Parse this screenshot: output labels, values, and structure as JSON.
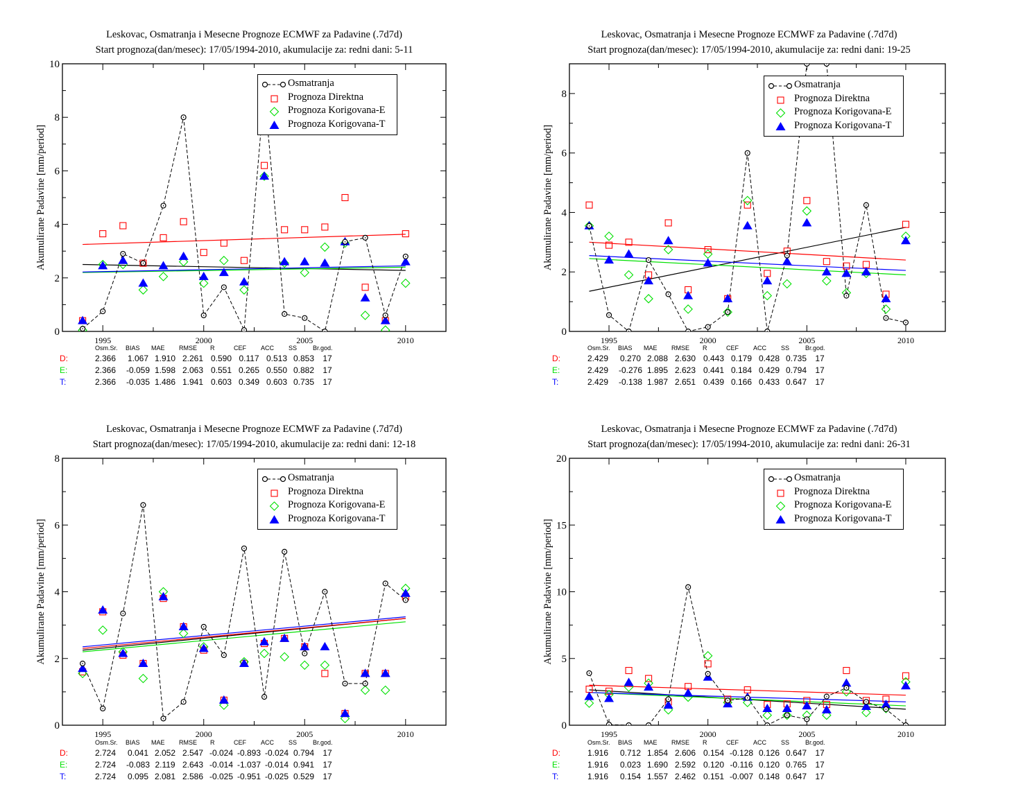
{
  "colors": {
    "obs": "#000000",
    "direct": "#ff0000",
    "corr_e": "#00e000",
    "corr_t": "#0000ff"
  },
  "legend": [
    "Osmatranja",
    "Prognoza Direktna",
    "Prognoza Korigovana-E",
    "Prognoza Korigovana-T"
  ],
  "stats_header": [
    "Osm.Sr.",
    "BIAS",
    "MAE",
    "RMSE",
    "R",
    "CEF",
    "ACC",
    "SS",
    "Br.god."
  ],
  "chart_data": [
    {
      "type": "scatter",
      "title": "Leskovac, Osmatranja i Mesecne Prognoze ECMWF za Padavine (.7d7d)",
      "subtitle": "Start prognoza(dan/mesec): 17/05/1994-2010, akumulacije za: redni dani: 5-11",
      "xlabel": "",
      "ylabel": "Akumulirane Padavine [mm/period]",
      "xlim": [
        1993,
        2012
      ],
      "ylim": [
        0,
        10
      ],
      "yticks": [
        0,
        2,
        4,
        6,
        8,
        10
      ],
      "xticks": [
        1995,
        2000,
        2005,
        2010
      ],
      "legend_position": "top-right",
      "x": [
        1994,
        1995,
        1996,
        1997,
        1998,
        1999,
        2000,
        2001,
        2002,
        2003,
        2004,
        2005,
        2006,
        2007,
        2008,
        2009,
        2010
      ],
      "series": [
        {
          "name": "Osmatranja",
          "values": [
            0.1,
            0.75,
            2.9,
            2.55,
            4.7,
            8.0,
            0.6,
            1.65,
            0.05,
            9.0,
            0.65,
            0.5,
            0.0,
            3.35,
            3.5,
            0.6,
            2.8
          ]
        },
        {
          "name": "Prognoza Direktna",
          "values": [
            0.4,
            3.65,
            3.95,
            2.55,
            3.5,
            4.1,
            2.95,
            3.3,
            2.65,
            6.2,
            3.8,
            3.8,
            3.9,
            5.0,
            1.65,
            0.4,
            3.65
          ]
        },
        {
          "name": "Prognoza Korigovana-E",
          "values": [
            0.05,
            2.5,
            2.5,
            1.55,
            2.05,
            2.6,
            1.8,
            2.65,
            1.55,
            5.8,
            2.55,
            2.2,
            3.15,
            3.3,
            0.6,
            0.05,
            1.8
          ]
        },
        {
          "name": "Prognoza Korigovana-T",
          "values": [
            0.4,
            2.45,
            2.65,
            1.8,
            2.45,
            2.8,
            2.05,
            2.2,
            1.85,
            5.8,
            2.6,
            2.6,
            2.55,
            3.35,
            1.25,
            0.4,
            2.6
          ]
        }
      ],
      "trends": {
        "obs": [
          2.5,
          2.28
        ],
        "direct": [
          3.25,
          3.63
        ],
        "corr_e": [
          2.2,
          2.4
        ],
        "corr_t": [
          2.22,
          2.45
        ]
      },
      "stats": [
        {
          "label": "D:",
          "values": [
            "2.366",
            "1.067",
            "1.910",
            "2.261",
            "0.590",
            "0.117",
            "0.513",
            "0.853",
            "17"
          ]
        },
        {
          "label": "E:",
          "values": [
            "2.366",
            "-0.059",
            "1.598",
            "2.063",
            "0.551",
            "0.265",
            "0.550",
            "0.882",
            "17"
          ]
        },
        {
          "label": "T:",
          "values": [
            "2.366",
            "-0.035",
            "1.486",
            "1.941",
            "0.603",
            "0.349",
            "0.603",
            "0.735",
            "17"
          ]
        }
      ]
    },
    {
      "type": "scatter",
      "title": "Leskovac, Osmatranja i Mesecne Prognoze ECMWF za Padavine (.7d7d)",
      "subtitle": "Start prognoza(dan/mesec): 17/05/1994-2010, akumulacije za: redni dani: 19-25",
      "xlabel": "",
      "ylabel": "Akumulirane Padavine [mm/period]",
      "xlim": [
        1993,
        2012
      ],
      "ylim": [
        0,
        9
      ],
      "yticks": [
        0,
        2,
        4,
        6,
        8
      ],
      "xticks": [
        1995,
        2000,
        2005,
        2010
      ],
      "legend_position": "top-right",
      "x": [
        1994,
        1995,
        1996,
        1997,
        1998,
        1999,
        2000,
        2001,
        2002,
        2003,
        2004,
        2005,
        2006,
        2007,
        2008,
        2009,
        2010
      ],
      "series": [
        {
          "name": "Osmatranja",
          "values": [
            3.55,
            0.55,
            0.0,
            2.4,
            1.25,
            0.0,
            0.15,
            0.65,
            6.0,
            0.0,
            2.55,
            9.0,
            9.0,
            1.2,
            4.25,
            0.45,
            0.3
          ]
        },
        {
          "name": "Prognoza Direktna",
          "values": [
            4.25,
            2.9,
            3.0,
            1.9,
            3.65,
            1.4,
            2.75,
            1.1,
            4.25,
            1.95,
            2.7,
            4.4,
            2.35,
            2.2,
            2.25,
            1.25,
            3.6
          ]
        },
        {
          "name": "Prognoza Korigovana-E",
          "values": [
            3.55,
            3.2,
            1.9,
            1.1,
            2.75,
            0.75,
            2.6,
            0.65,
            4.4,
            1.2,
            1.6,
            4.05,
            1.7,
            1.3,
            1.95,
            0.75,
            3.2
          ]
        },
        {
          "name": "Prognoza Korigovana-T",
          "values": [
            3.55,
            2.4,
            2.6,
            1.7,
            3.05,
            1.2,
            2.3,
            1.1,
            3.55,
            1.7,
            2.35,
            3.65,
            2.0,
            1.95,
            2.0,
            1.1,
            3.05
          ]
        }
      ],
      "trends": {
        "obs": [
          1.35,
          3.5
        ],
        "direct": [
          3.0,
          2.4
        ],
        "corr_e": [
          2.45,
          1.9
        ],
        "corr_t": [
          2.55,
          2.05
        ]
      },
      "stats": [
        {
          "label": "D:",
          "values": [
            "2.429",
            "0.270",
            "2.088",
            "2.630",
            "0.443",
            "0.179",
            "0.428",
            "0.735",
            "17"
          ]
        },
        {
          "label": "E:",
          "values": [
            "2.429",
            "-0.276",
            "1.895",
            "2.623",
            "0.441",
            "0.184",
            "0.429",
            "0.794",
            "17"
          ]
        },
        {
          "label": "T:",
          "values": [
            "2.429",
            "-0.138",
            "1.987",
            "2.651",
            "0.439",
            "0.166",
            "0.433",
            "0.647",
            "17"
          ]
        }
      ]
    },
    {
      "type": "scatter",
      "title": "Leskovac, Osmatranja i Mesecne Prognoze ECMWF za Padavine (.7d7d)",
      "subtitle": "Start prognoza(dan/mesec): 17/05/1994-2010, akumulacije za: redni dani: 12-18",
      "xlabel": "",
      "ylabel": "Akumulirane Padavine [mm/period]",
      "xlim": [
        1993,
        2012
      ],
      "ylim": [
        0,
        8
      ],
      "yticks": [
        0,
        2,
        4,
        6,
        8
      ],
      "xticks": [
        1995,
        2000,
        2005,
        2010
      ],
      "legend_position": "top-right",
      "x": [
        1994,
        1995,
        1996,
        1997,
        1998,
        1999,
        2000,
        2001,
        2002,
        2003,
        2004,
        2005,
        2006,
        2007,
        2008,
        2009,
        2010
      ],
      "series": [
        {
          "name": "Osmatranja",
          "values": [
            1.85,
            0.5,
            3.35,
            6.6,
            0.2,
            0.7,
            2.95,
            2.1,
            5.3,
            0.85,
            5.2,
            2.15,
            4.0,
            1.25,
            1.25,
            4.25,
            3.75
          ]
        },
        {
          "name": "Prognoza Direktna",
          "values": [
            1.6,
            3.4,
            2.1,
            1.85,
            3.8,
            2.95,
            2.25,
            0.75,
            1.85,
            2.45,
            2.6,
            2.35,
            1.55,
            0.35,
            1.55,
            1.55,
            3.85
          ]
        },
        {
          "name": "Prognoza Korigovana-E",
          "values": [
            1.55,
            2.85,
            2.2,
            1.4,
            4.0,
            2.75,
            2.35,
            0.6,
            1.9,
            2.15,
            2.05,
            1.8,
            1.8,
            0.2,
            1.05,
            1.05,
            4.1
          ]
        },
        {
          "name": "Prognoza Korigovana-T",
          "values": [
            1.7,
            3.45,
            2.15,
            1.85,
            3.85,
            2.95,
            2.3,
            0.75,
            1.85,
            2.5,
            2.6,
            2.35,
            2.35,
            0.35,
            1.55,
            1.55,
            3.95
          ]
        }
      ],
      "trends": {
        "obs": [
          2.25,
          3.2
        ],
        "direct": [
          2.3,
          3.2
        ],
        "corr_e": [
          2.2,
          3.1
        ],
        "corr_t": [
          2.35,
          3.25
        ]
      },
      "stats": [
        {
          "label": "D:",
          "values": [
            "2.724",
            "0.041",
            "2.052",
            "2.547",
            "-0.024",
            "-0.893",
            "-0.024",
            "0.794",
            "17"
          ]
        },
        {
          "label": "E:",
          "values": [
            "2.724",
            "-0.083",
            "2.119",
            "2.643",
            "-0.014",
            "-1.037",
            "-0.014",
            "0.941",
            "17"
          ]
        },
        {
          "label": "T:",
          "values": [
            "2.724",
            "0.095",
            "2.081",
            "2.586",
            "-0.025",
            "-0.951",
            "-0.025",
            "0.529",
            "17"
          ]
        }
      ]
    },
    {
      "type": "scatter",
      "title": "Leskovac, Osmatranja i Mesecne Prognoze ECMWF za Padavine (.7d7d)",
      "subtitle": "Start prognoza(dan/mesec): 17/05/1994-2010, akumulacije za: redni dani: 26-31",
      "xlabel": "",
      "ylabel": "Akumulirane Padavine [mm/period]",
      "xlim": [
        1993,
        2012
      ],
      "ylim": [
        0,
        20
      ],
      "yticks": [
        0,
        5,
        10,
        15,
        20
      ],
      "xticks": [
        1995,
        2000,
        2005,
        2010
      ],
      "legend_position": "top-right",
      "x": [
        1994,
        1995,
        1996,
        1997,
        1998,
        1999,
        2000,
        2001,
        2002,
        2003,
        2004,
        2005,
        2006,
        2007,
        2008,
        2009,
        2010
      ],
      "series": [
        {
          "name": "Osmatranja",
          "values": [
            3.9,
            0.05,
            0.0,
            0.0,
            1.95,
            10.35,
            3.85,
            1.85,
            2.05,
            0.0,
            0.75,
            0.45,
            2.15,
            2.8,
            1.75,
            1.2,
            0.0
          ]
        },
        {
          "name": "Prognoza Direktna",
          "values": [
            2.7,
            2.55,
            4.1,
            3.5,
            1.75,
            2.9,
            4.6,
            1.95,
            2.65,
            1.55,
            1.6,
            1.85,
            1.55,
            4.1,
            1.85,
            1.95,
            3.7
          ]
        },
        {
          "name": "Prognoza Korigovana-E",
          "values": [
            1.65,
            2.3,
            2.85,
            3.15,
            1.15,
            2.1,
            5.2,
            1.7,
            1.7,
            0.75,
            0.75,
            0.75,
            0.75,
            2.5,
            0.95,
            1.25,
            3.25
          ]
        },
        {
          "name": "Prognoza Korigovana-T",
          "values": [
            2.15,
            2.0,
            3.2,
            2.85,
            1.5,
            2.4,
            3.6,
            1.6,
            2.1,
            1.25,
            1.25,
            1.45,
            1.15,
            3.15,
            1.4,
            1.55,
            2.95
          ]
        }
      ],
      "trends": {
        "obs": [
          2.65,
          1.2
        ],
        "direct": [
          3.0,
          2.25
        ],
        "corr_e": [
          2.45,
          1.45
        ],
        "corr_t": [
          2.45,
          1.75
        ]
      },
      "stats": [
        {
          "label": "D:",
          "values": [
            "1.916",
            "0.712",
            "1.854",
            "2.606",
            "0.154",
            "-0.128",
            "0.126",
            "0.647",
            "17"
          ]
        },
        {
          "label": "E:",
          "values": [
            "1.916",
            "0.023",
            "1.690",
            "2.592",
            "0.120",
            "-0.116",
            "0.120",
            "0.765",
            "17"
          ]
        },
        {
          "label": "T:",
          "values": [
            "1.916",
            "0.154",
            "1.557",
            "2.462",
            "0.151",
            "-0.007",
            "0.148",
            "0.647",
            "17"
          ]
        }
      ]
    }
  ]
}
